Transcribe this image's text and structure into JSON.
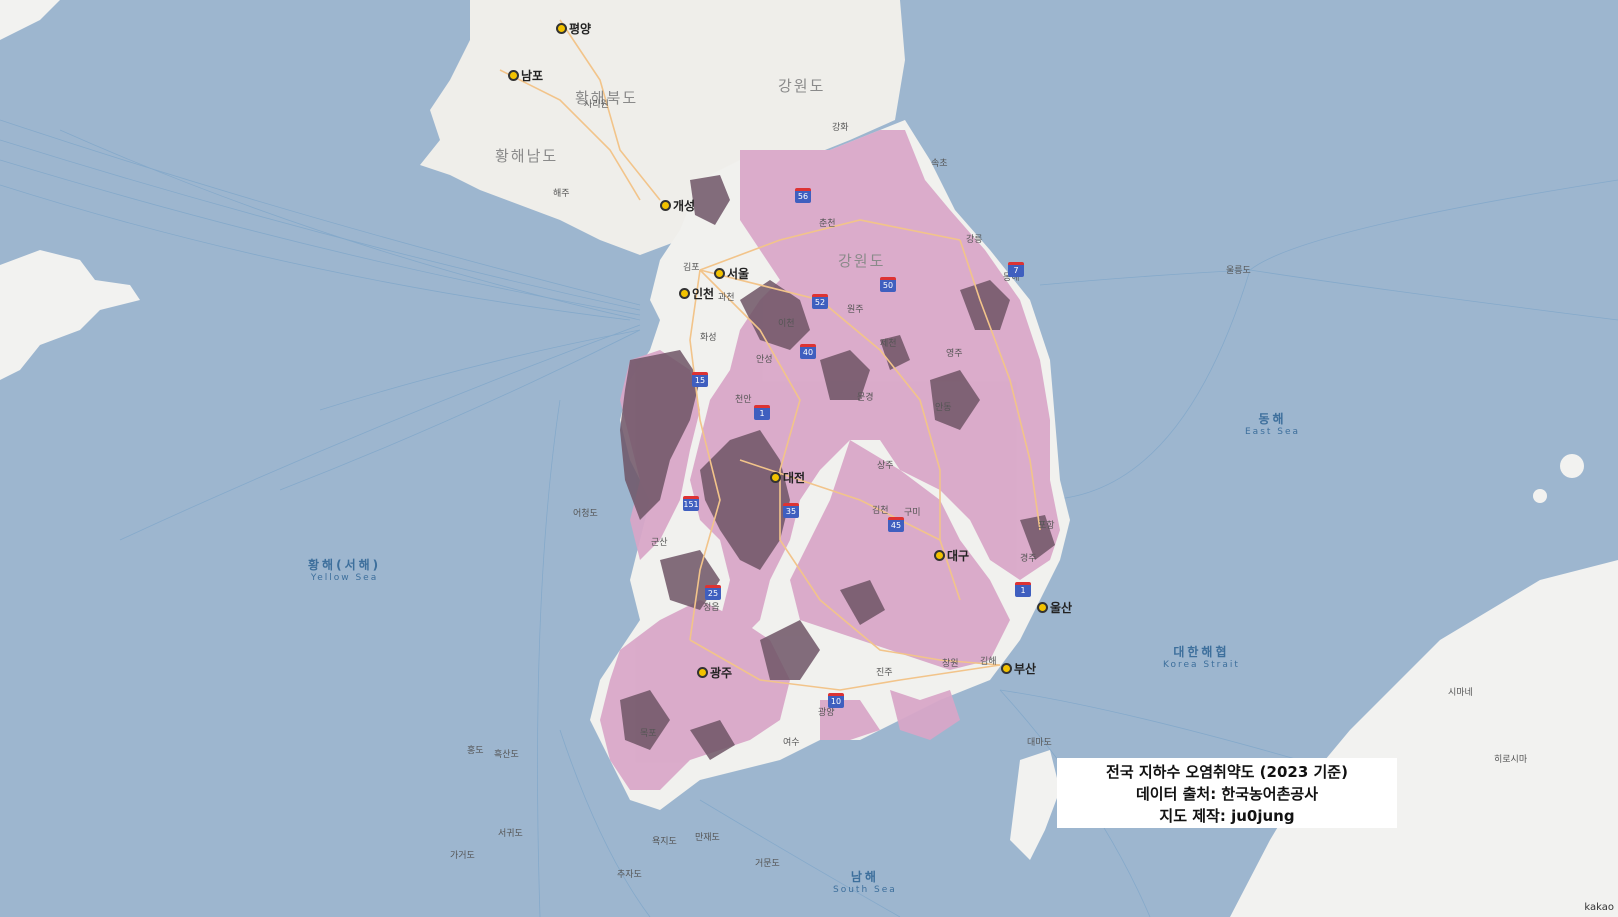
{
  "info_box": {
    "title": "전국 지하수 오염취약도 (2023 기준)",
    "source": "데이터 출처: 한국농어촌공사",
    "author": "지도 제작: ju0jung"
  },
  "attribution": "kakao",
  "colors": {
    "sea": "#9db6cf",
    "land": "#f1f1ee",
    "vulnerability_low": "#d9a6c8",
    "vulnerability_high": "#6f5566",
    "road": "#f2c48a",
    "highway_badge": "#3f5fbf"
  },
  "seas": [
    {
      "name": "황해(서해)",
      "en": "Yellow Sea"
    },
    {
      "name": "동해",
      "en": "East Sea"
    },
    {
      "name": "대한해협",
      "en": "Korea Strait"
    },
    {
      "name": "남해",
      "en": "South Sea"
    }
  ],
  "provinces": [
    "황해북도",
    "황해남도",
    "강원도",
    "강원도"
  ],
  "cities": [
    "평양",
    "남포",
    "개성",
    "서울",
    "인천",
    "대구",
    "울산",
    "부산",
    "광주",
    "대전"
  ],
  "towns": [
    "사리원",
    "해주",
    "속초",
    "강릉",
    "동해",
    "원주",
    "춘천",
    "제천",
    "상주",
    "김천",
    "구미",
    "경주",
    "포항",
    "창원",
    "김해",
    "진주",
    "여수",
    "광양",
    "목포",
    "군산",
    "정읍",
    "천안",
    "이천",
    "화성",
    "김포",
    "과천",
    "안성",
    "문경",
    "안동",
    "영주",
    "울릉도",
    "시마네",
    "히로시마",
    "대마도",
    "흑산도",
    "어청도",
    "가거도",
    "추자도",
    "서귀도",
    "거문도",
    "욕지도",
    "홍도",
    "만재도",
    "강화"
  ],
  "highways": [
    "1",
    "1",
    "25",
    "35",
    "45",
    "50",
    "10",
    "15",
    "52",
    "40",
    "56",
    "151",
    "7"
  ]
}
